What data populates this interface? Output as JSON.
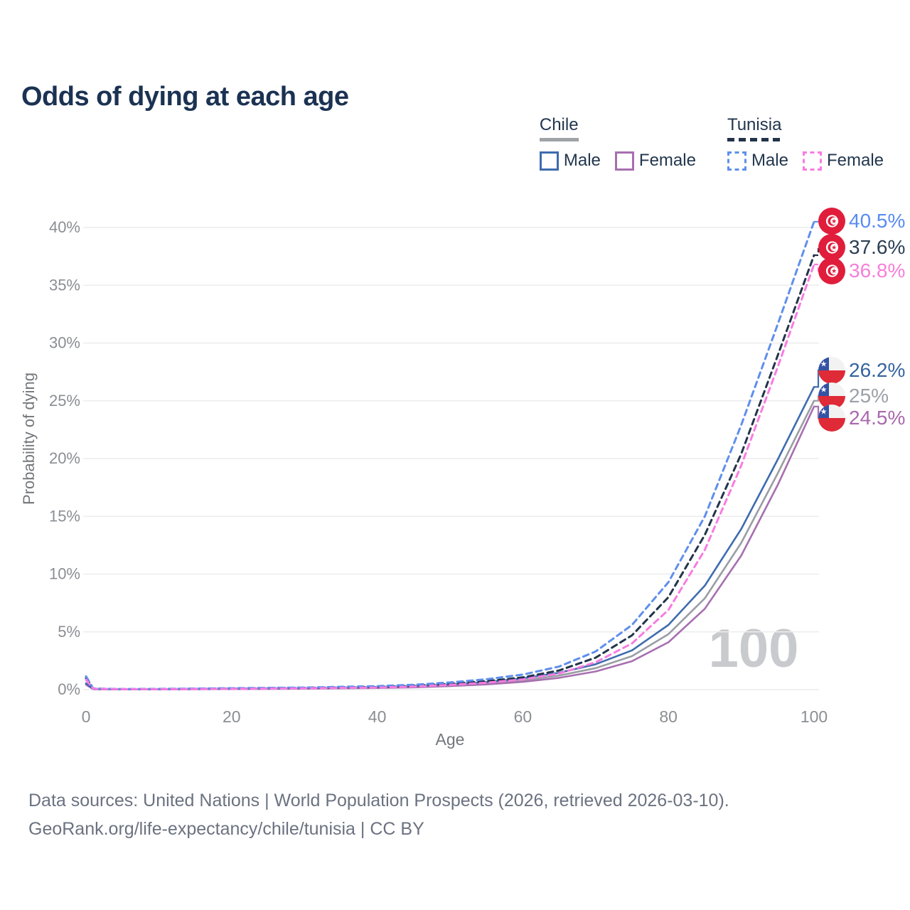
{
  "title": "Odds of dying at each age",
  "legend": {
    "groups": [
      {
        "label": "Chile",
        "line_style": "solid",
        "items": [
          {
            "label": "Male"
          },
          {
            "label": "Female"
          }
        ]
      },
      {
        "label": "Tunisia",
        "line_style": "dashed",
        "items": [
          {
            "label": "Male"
          },
          {
            "label": "Female"
          }
        ]
      }
    ]
  },
  "watermark": "100",
  "colors": {
    "title_text": "#1b3252",
    "legend_text": "#22364e",
    "grid": "#ececee",
    "tick_text": "#8b8e92",
    "axis_title_text": "#72767b",
    "watermark_text": "#c8cacd",
    "tunisia_flag_red": "#e11d3c",
    "chile_flag_blue": "#3453a4",
    "chile_flag_red": "#df2a38"
  },
  "chart_data": {
    "type": "line",
    "title": "Odds of dying at each age",
    "xlabel": "Age",
    "ylabel": "Probability of dying",
    "xlim": [
      0,
      100
    ],
    "ylim_percent": [
      0,
      40.5
    ],
    "x_ticks": [
      0,
      20,
      40,
      60,
      80,
      100
    ],
    "y_tick_labels": [
      "0%",
      "5%",
      "10%",
      "15%",
      "20%",
      "25%",
      "30%",
      "35%",
      "40%"
    ],
    "grid": "horizontal",
    "legend_position": "top-right",
    "x": [
      0,
      1,
      5,
      10,
      20,
      30,
      40,
      45,
      50,
      55,
      60,
      65,
      70,
      75,
      80,
      85,
      90,
      95,
      100
    ],
    "series": [
      {
        "name": "Tunisia Male",
        "country": "Tunisia",
        "sex": "male",
        "dashed": true,
        "flag": "tunisia",
        "color": "#5f8fec",
        "label_color": "#598bf2",
        "end_label": "40.5%",
        "values": [
          1.15,
          0.09,
          0.05,
          0.06,
          0.12,
          0.18,
          0.3,
          0.42,
          0.62,
          0.9,
          1.3,
          2.0,
          3.3,
          5.6,
          9.3,
          15.0,
          22.9,
          31.6,
          40.5
        ]
      },
      {
        "name": "Tunisia",
        "country": "Tunisia",
        "sex": "both",
        "dashed": true,
        "flag": "tunisia",
        "color": "#23344a",
        "label_color": "#2b3e53",
        "end_label": "37.6%",
        "values": [
          1.0,
          0.08,
          0.04,
          0.05,
          0.09,
          0.14,
          0.23,
          0.33,
          0.5,
          0.73,
          1.06,
          1.66,
          2.76,
          4.7,
          8.0,
          13.4,
          20.4,
          28.9,
          37.6
        ]
      },
      {
        "name": "Tunisia Female",
        "country": "Tunisia",
        "sex": "female",
        "dashed": true,
        "flag": "tunisia",
        "color": "#f87ce1",
        "label_color": "#f77fdb",
        "end_label": "36.8%",
        "values": [
          0.85,
          0.07,
          0.04,
          0.04,
          0.07,
          0.11,
          0.18,
          0.26,
          0.41,
          0.6,
          0.88,
          1.4,
          2.36,
          4.0,
          6.9,
          12.1,
          19.4,
          27.9,
          36.8
        ]
      },
      {
        "name": "Chile Male",
        "country": "Chile",
        "sex": "male",
        "dashed": false,
        "flag": "chile",
        "color": "#3e6cae",
        "label_color": "#35649f",
        "end_label": "26.2%",
        "values": [
          0.55,
          0.05,
          0.03,
          0.03,
          0.09,
          0.13,
          0.21,
          0.31,
          0.46,
          0.66,
          0.97,
          1.46,
          2.2,
          3.4,
          5.6,
          9.0,
          13.9,
          19.9,
          26.2
        ]
      },
      {
        "name": "Chile",
        "country": "Chile",
        "sex": "both",
        "dashed": false,
        "flag": "chile",
        "color": "#9a9ea3",
        "label_color": "#9aa1a8",
        "end_label": "25%",
        "values": [
          0.48,
          0.04,
          0.02,
          0.03,
          0.07,
          0.1,
          0.17,
          0.25,
          0.37,
          0.54,
          0.8,
          1.22,
          1.86,
          2.9,
          4.8,
          7.9,
          12.7,
          18.7,
          25.0
        ]
      },
      {
        "name": "Chile Female",
        "country": "Chile",
        "sex": "female",
        "dashed": false,
        "flag": "chile",
        "color": "#a76fb0",
        "label_color": "#a869ac",
        "end_label": "24.5%",
        "values": [
          0.42,
          0.04,
          0.02,
          0.02,
          0.05,
          0.08,
          0.14,
          0.2,
          0.3,
          0.45,
          0.67,
          1.02,
          1.57,
          2.46,
          4.1,
          7.0,
          11.6,
          17.7,
          24.5
        ]
      }
    ]
  },
  "footer": {
    "line1": "Data sources: United Nations | World Population Prospects (2026, retrieved 2026-03-10).",
    "line2": "GeoRank.org/life-expectancy/chile/tunisia | CC BY"
  }
}
